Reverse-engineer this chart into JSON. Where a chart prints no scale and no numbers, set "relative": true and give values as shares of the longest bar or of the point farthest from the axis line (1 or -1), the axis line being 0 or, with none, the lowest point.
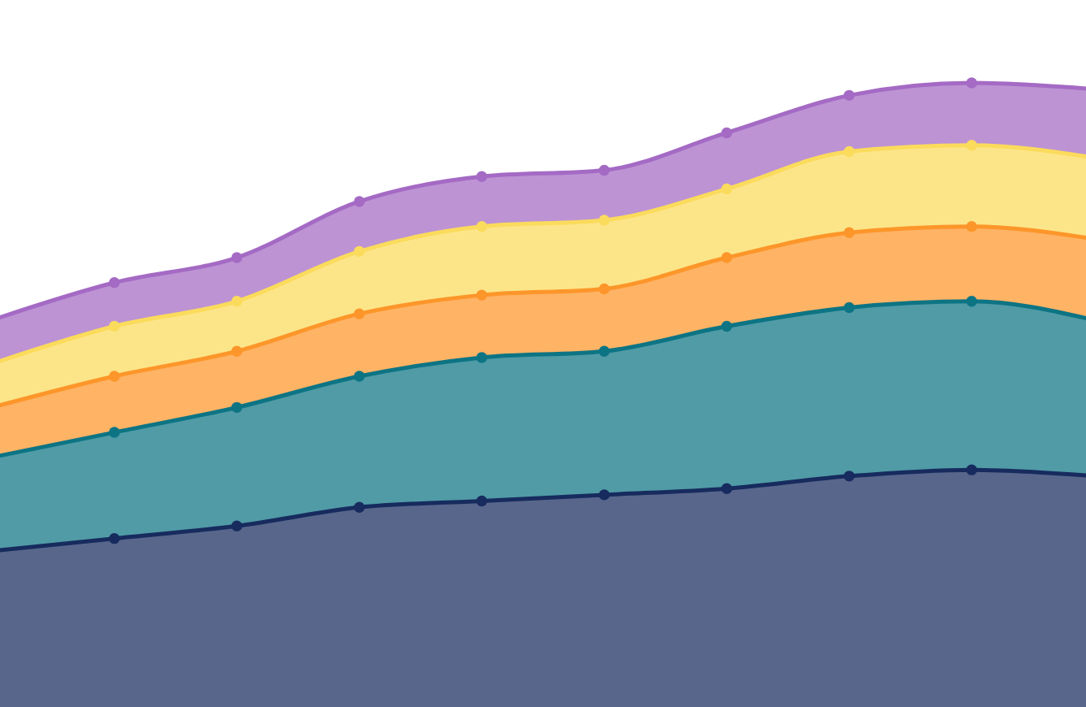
{
  "chart_data": {
    "type": "area",
    "relative": true,
    "stacked": true,
    "marker": "circle",
    "line_style": "solid",
    "categories": [
      null,
      null,
      null,
      null,
      null,
      null,
      null,
      null,
      null,
      null
    ],
    "series": [
      {
        "color": "#172b5e",
        "values": [
          0.25,
          0.27,
          0.29,
          0.32,
          0.33,
          0.34,
          0.35,
          0.37,
          0.38,
          0.37
        ]
      },
      {
        "color": "#0d7484",
        "values": [
          0.15,
          0.17,
          0.19,
          0.21,
          0.23,
          0.23,
          0.26,
          0.27,
          0.27,
          0.25
        ]
      },
      {
        "color": "#fd962a",
        "values": [
          0.08,
          0.09,
          0.09,
          0.1,
          0.1,
          0.1,
          0.11,
          0.12,
          0.12,
          0.13
        ]
      },
      {
        "color": "#fbdb5c",
        "values": [
          0.07,
          0.08,
          0.08,
          0.1,
          0.11,
          0.11,
          0.11,
          0.13,
          0.13,
          0.13
        ]
      },
      {
        "color": "#a46ac4",
        "values": [
          0.07,
          0.07,
          0.07,
          0.08,
          0.08,
          0.08,
          0.09,
          0.09,
          0.1,
          0.11
        ]
      }
    ]
  }
}
